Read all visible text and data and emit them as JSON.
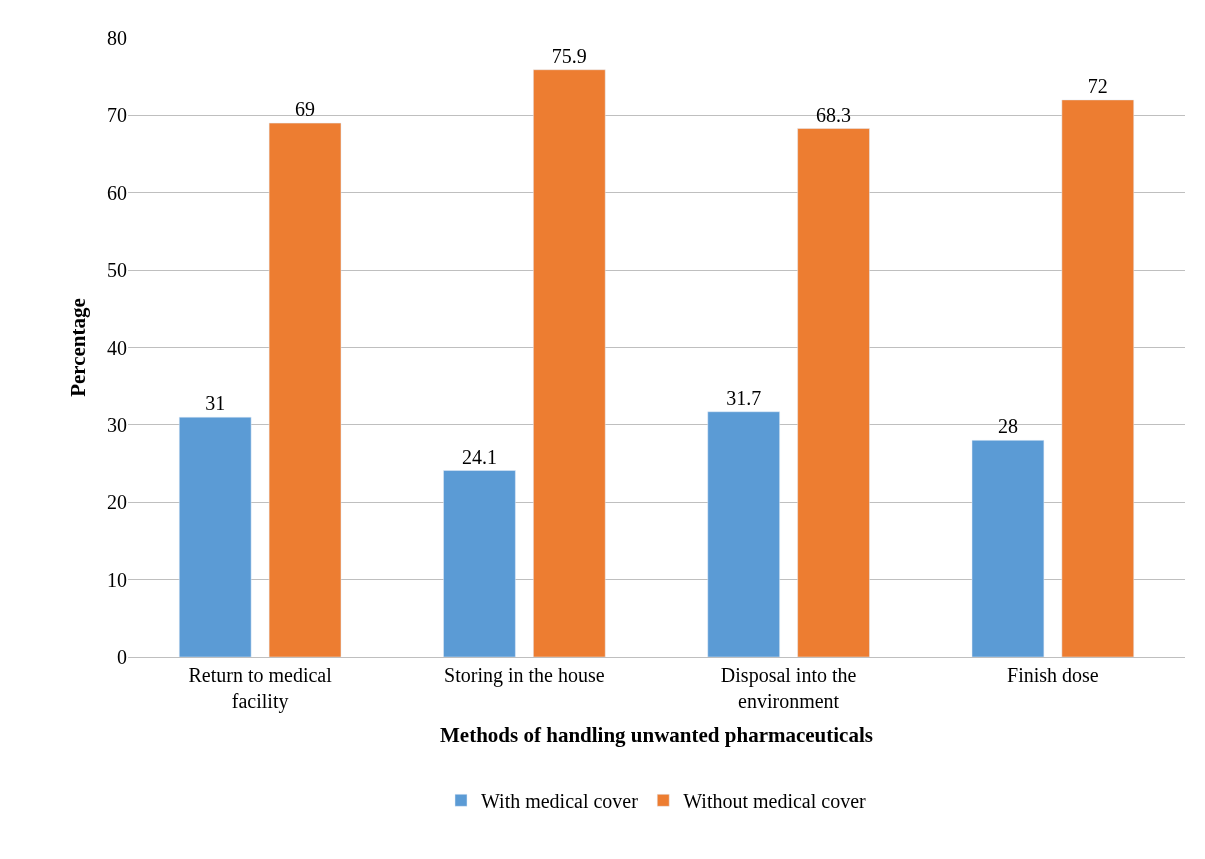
{
  "chart_data": {
    "type": "bar",
    "xlabel": "Methods of handling unwanted pharmaceuticals",
    "ylabel": "Percentage",
    "categories": [
      "Return to medical facility",
      "Storing in the house",
      "Disposal into the environment",
      "Finish dose"
    ],
    "series": [
      {
        "name": "With medical cover",
        "color": "#5b9bd5",
        "values": [
          31,
          24.1,
          31.7,
          28
        ]
      },
      {
        "name": "Without medical cover",
        "color": "#ed7d31",
        "values": [
          69,
          75.9,
          68.3,
          72
        ]
      }
    ],
    "ylim": [
      0,
      80
    ],
    "yticks": [
      0,
      10,
      20,
      30,
      40,
      50,
      60,
      70,
      80
    ],
    "grid": "y",
    "legend": "bottom",
    "data_labels": true
  }
}
